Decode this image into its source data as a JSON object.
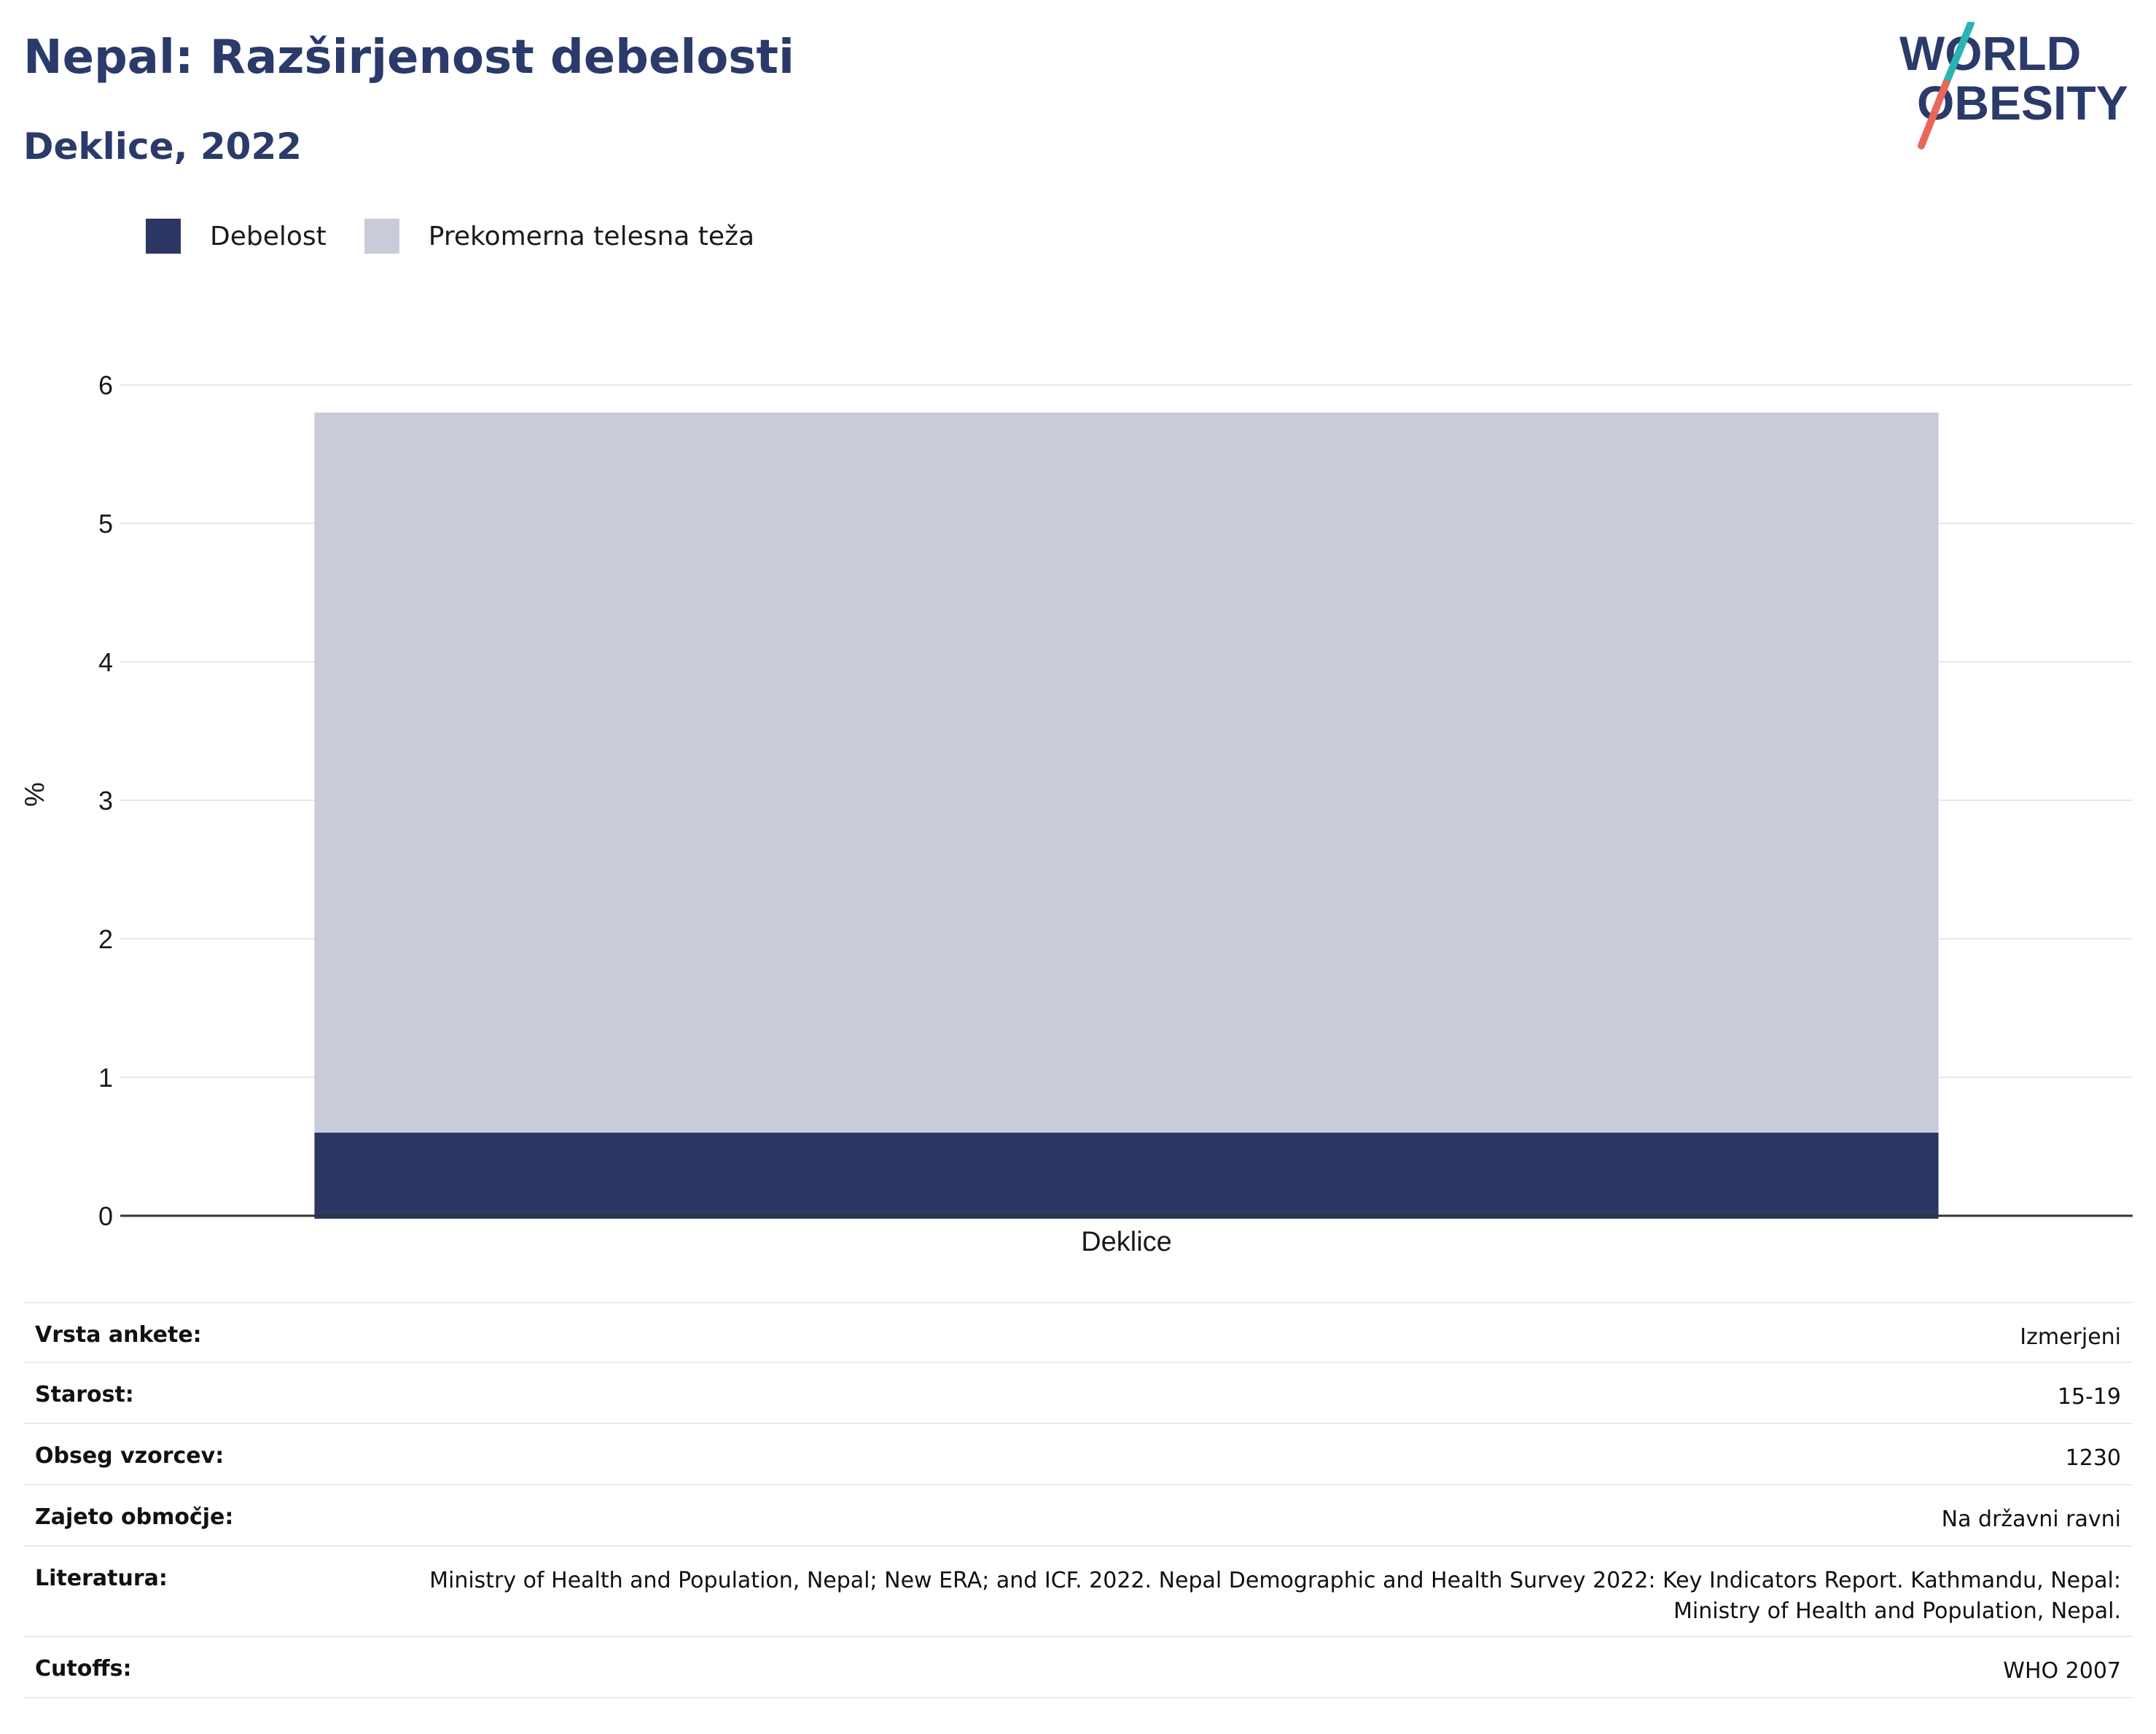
{
  "header": {
    "title": "Nepal: Razširjenost debelosti",
    "subtitle": "Deklice, 2022"
  },
  "logo": {
    "line1": "WORLD",
    "line2": "OBESITY",
    "colors": {
      "text": "#2a3a6a",
      "teal": "#2bb3b1",
      "coral": "#e8685a"
    }
  },
  "legend": [
    {
      "label": "Debelost",
      "color": "#2b3664"
    },
    {
      "label": "Prekomerna telesna teža",
      "color": "#c9ccd8"
    }
  ],
  "chart_data": {
    "type": "bar",
    "stacked": true,
    "categories": [
      "Deklice"
    ],
    "series": [
      {
        "name": "Debelost",
        "values": [
          0.6
        ],
        "color": "#2b3664"
      },
      {
        "name": "Prekomerna telesna teža",
        "values": [
          5.2
        ],
        "color": "#c9ccd8"
      }
    ],
    "title": "",
    "xlabel": "",
    "ylabel": "%",
    "ylim": [
      0,
      6
    ],
    "yticks": [
      "0",
      "1",
      "2",
      "3",
      "4",
      "5",
      "6"
    ],
    "grid": true,
    "legend_position": "top-left"
  },
  "metadata": [
    {
      "key": "Vrsta ankete:",
      "value": "Izmerjeni"
    },
    {
      "key": "Starost:",
      "value": "15-19"
    },
    {
      "key": "Obseg vzorcev:",
      "value": "1230"
    },
    {
      "key": "Zajeto območje:",
      "value": "Na državni ravni"
    },
    {
      "key": "Literatura:",
      "value": "Ministry of Health and Population, Nepal; New ERA; and ICF. 2022. Nepal Demographic and Health Survey 2022: Key Indicators Report. Kathmandu, Nepal: Ministry of Health and Population, Nepal."
    },
    {
      "key": "Cutoffs:",
      "value": "WHO 2007"
    }
  ]
}
